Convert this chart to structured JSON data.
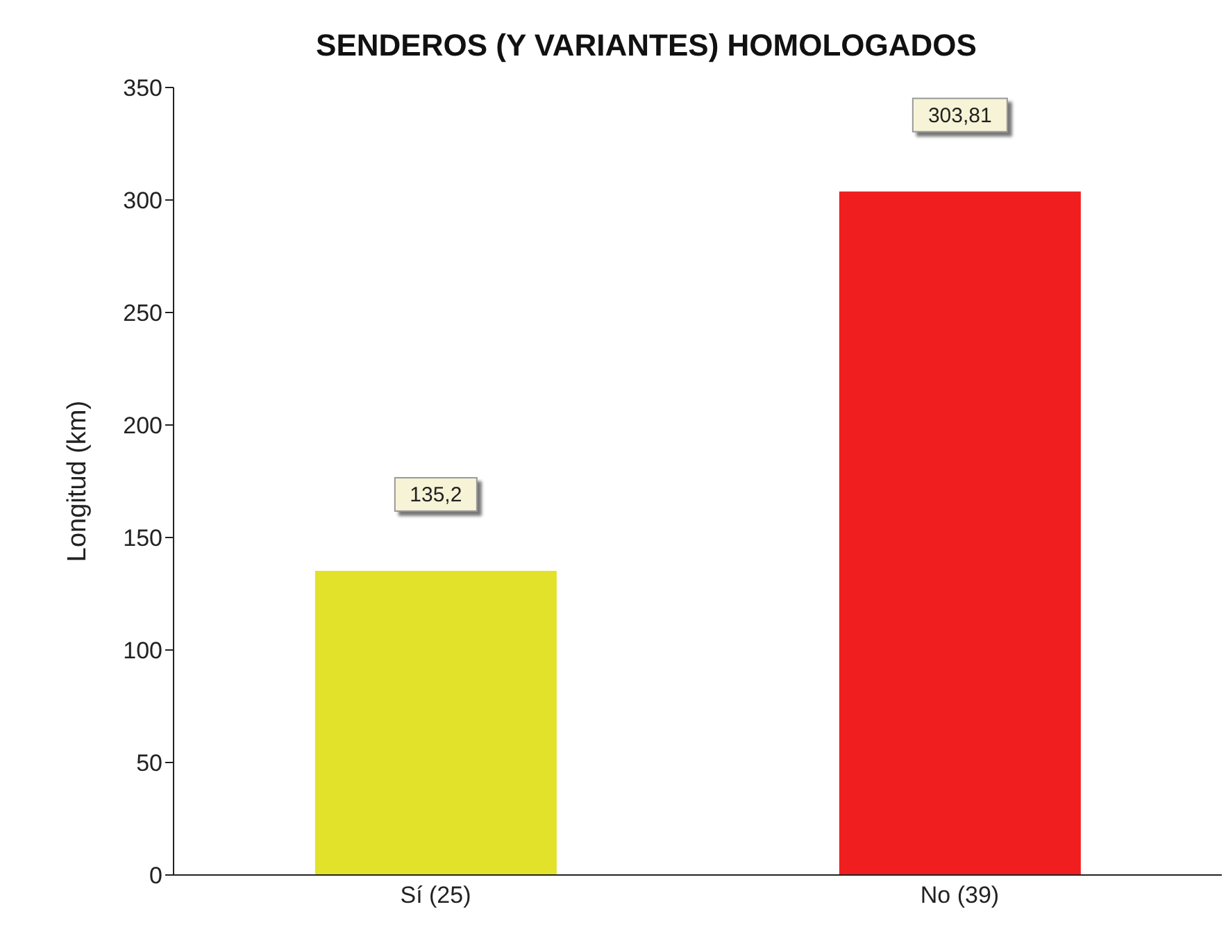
{
  "chart_data": {
    "type": "bar",
    "title": "SENDEROS (Y VARIANTES) HOMOLOGADOS",
    "ylabel": "Longitud (km)",
    "categories": [
      "Sí (25)",
      "No (39)"
    ],
    "values": [
      135.2,
      303.81
    ],
    "value_labels": [
      "135,2",
      "303,81"
    ],
    "colors": [
      "#e2e22a",
      "#f01e1e"
    ],
    "ylim": [
      0,
      350
    ],
    "yticks": [
      0,
      50,
      100,
      150,
      200,
      250,
      300,
      350
    ],
    "grid": false,
    "legend": false
  }
}
